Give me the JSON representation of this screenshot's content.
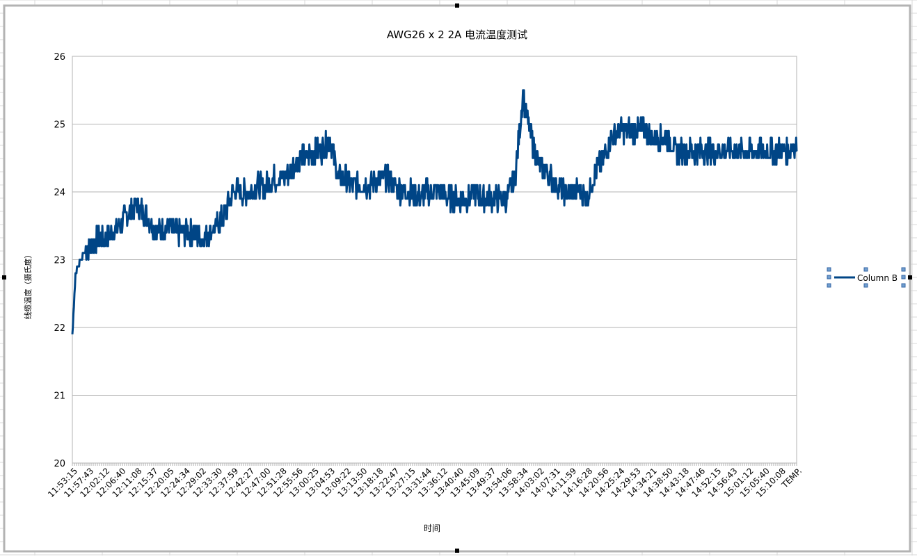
{
  "chart_data": {
    "type": "line",
    "title": "AWG26 x 2 2A 电流温度测试",
    "xlabel": "时间",
    "ylabel": "线缆温度（摄氏度）",
    "ylim": [
      20,
      26
    ],
    "yticks": [
      "20",
      "21",
      "22",
      "23",
      "24",
      "25",
      "26"
    ],
    "grid": true,
    "legend_position": "right",
    "x_tick_labels": [
      "11:53:15",
      "11:57:43",
      "12:02:12",
      "12:06:40",
      "12:11:08",
      "12:15:37",
      "12:20:05",
      "12:24:34",
      "12:29:02",
      "12:33:30",
      "12:37:59",
      "12:42:27",
      "12:47:00",
      "12:51:28",
      "12:55:56",
      "13:00:25",
      "13:04:53",
      "13:09:22",
      "13:13:50",
      "13:18:18",
      "13:22:47",
      "13:27:15",
      "13:31:44",
      "13:36:12",
      "13:40:40",
      "13:45:09",
      "13:49:37",
      "13:54:06",
      "13:58:34",
      "14:03:02",
      "14:07:31",
      "14:11:59",
      "14:16:28",
      "14:20:56",
      "14:25:24",
      "14:29:53",
      "14:34:21",
      "14:38:50",
      "14:43:18",
      "14:47:46",
      "14:52:15",
      "14:56:43",
      "15:01:12",
      "15:05:40",
      "15:10:08",
      "TEMP."
    ],
    "series": [
      {
        "name": "Column B",
        "color": "#004586",
        "x": [
          0,
          0.2,
          0.5,
          1,
          1.5,
          2,
          2.5,
          3,
          3.5,
          4,
          4.5,
          5,
          5.5,
          6,
          6.5,
          7,
          7.5,
          8,
          8.5,
          9,
          9.5,
          10,
          10.5,
          11,
          11.5,
          12,
          12.5,
          13,
          13.5,
          14,
          14.5,
          15,
          15.5,
          16,
          16.5,
          17,
          17.5,
          18,
          18.5,
          19,
          19.5,
          20,
          20.5,
          21,
          21.5,
          22,
          22.5,
          23,
          23.5,
          24,
          24.5,
          25,
          25.5,
          26,
          26.5,
          27,
          27.5,
          28,
          28.5,
          29,
          29.5,
          30,
          30.5,
          31,
          31.5,
          32,
          32.5,
          33,
          33.5,
          34,
          34.3,
          34.6,
          35,
          35.3,
          35.6,
          36,
          36.5,
          37,
          37.5,
          38,
          38.5,
          39,
          39.5,
          40,
          40.5,
          41,
          41.5,
          42,
          42.5,
          43,
          43.5,
          44,
          44.5,
          45
        ],
        "values": [
          21.9,
          22.8,
          23.0,
          23.2,
          23.3,
          23.3,
          23.4,
          23.5,
          23.7,
          23.8,
          23.7,
          23.5,
          23.4,
          23.5,
          23.4,
          23.4,
          23.4,
          23.3,
          23.4,
          23.5,
          23.7,
          24.0,
          24.0,
          24.0,
          24.1,
          24.1,
          24.2,
          24.2,
          24.3,
          24.5,
          24.5,
          24.6,
          24.6,
          24.8,
          24.2,
          24.2,
          24.1,
          24.1,
          24.1,
          24.2,
          24.2,
          24.1,
          24.0,
          24.0,
          23.9,
          24.0,
          24.0,
          24.0,
          23.9,
          23.9,
          23.9,
          24.0,
          23.9,
          23.9,
          23.9,
          23.9,
          24.2,
          25.4,
          24.8,
          24.4,
          24.3,
          24.1,
          24.0,
          24.0,
          24.0,
          23.9,
          24.3,
          24.5,
          24.8,
          24.9,
          24.9,
          24.9,
          24.9,
          24.9,
          24.9,
          24.8,
          24.8,
          24.8,
          24.6,
          24.6,
          24.6,
          24.6,
          24.6,
          24.6,
          24.6,
          24.6,
          24.6,
          24.6,
          24.6,
          24.6,
          24.6,
          24.6,
          24.6,
          24.7
        ],
        "noise": 0.18
      }
    ]
  }
}
